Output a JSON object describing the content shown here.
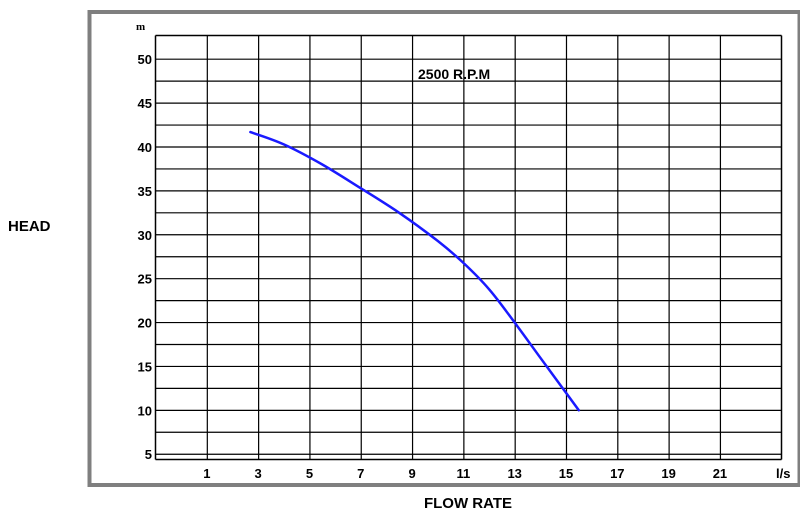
{
  "chart_data": {
    "type": "line",
    "annotation": "2500 R.P.M",
    "xlabel": "FLOW RATE",
    "ylabel": "HEAD",
    "x_unit": "l/s",
    "y_unit": "m",
    "x_ticks": [
      "1",
      "3",
      "5",
      "7",
      "9",
      "11",
      "13",
      "15",
      "17",
      "19",
      "21"
    ],
    "y_ticks": [
      "5",
      "10",
      "15",
      "20",
      "25",
      "30",
      "35",
      "40",
      "45",
      "50"
    ],
    "xlim": [
      -1,
      23.4
    ],
    "ylim": [
      4.4,
      52.7
    ],
    "grid": true,
    "series": [
      {
        "color": "#1a1aff",
        "x": [
          2.7,
          4.0,
          5.5,
          7.0,
          8.5,
          10.0,
          11.0,
          12.0,
          13.0,
          14.0,
          15.0,
          15.5
        ],
        "y": [
          41.7,
          40.3,
          38.0,
          35.3,
          32.5,
          29.3,
          26.8,
          23.8,
          20.0,
          16.0,
          12.0,
          10.0
        ]
      }
    ]
  }
}
